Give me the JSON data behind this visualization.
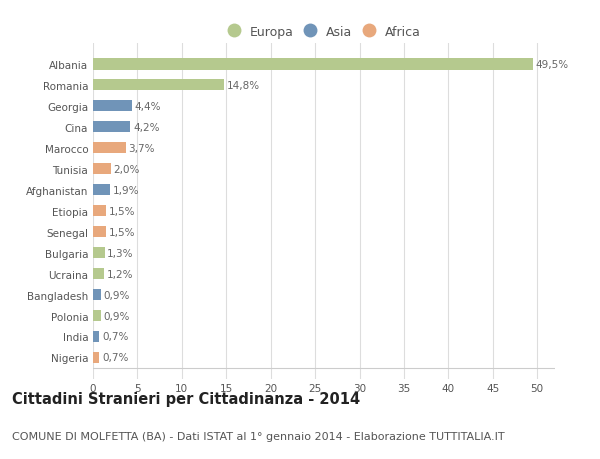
{
  "categories": [
    "Nigeria",
    "India",
    "Polonia",
    "Bangladesh",
    "Ucraina",
    "Bulgaria",
    "Senegal",
    "Etiopia",
    "Afghanistan",
    "Tunisia",
    "Marocco",
    "Cina",
    "Georgia",
    "Romania",
    "Albania"
  ],
  "values": [
    0.7,
    0.7,
    0.9,
    0.9,
    1.2,
    1.3,
    1.5,
    1.5,
    1.9,
    2.0,
    3.7,
    4.2,
    4.4,
    14.8,
    49.5
  ],
  "labels": [
    "0,7%",
    "0,7%",
    "0,9%",
    "0,9%",
    "1,2%",
    "1,3%",
    "1,5%",
    "1,5%",
    "1,9%",
    "2,0%",
    "3,7%",
    "4,2%",
    "4,4%",
    "14,8%",
    "49,5%"
  ],
  "colors": [
    "#e8a87c",
    "#7094b8",
    "#b5c98e",
    "#7094b8",
    "#b5c98e",
    "#b5c98e",
    "#e8a87c",
    "#e8a87c",
    "#7094b8",
    "#e8a87c",
    "#e8a87c",
    "#7094b8",
    "#7094b8",
    "#b5c98e",
    "#b5c98e"
  ],
  "legend_colors": {
    "Europa": "#b5c98e",
    "Asia": "#7094b8",
    "Africa": "#e8a87c"
  },
  "title": "Cittadini Stranieri per Cittadinanza - 2014",
  "subtitle": "COMUNE DI MOLFETTA (BA) - Dati ISTAT al 1° gennaio 2014 - Elaborazione TUTTITALIA.IT",
  "xlim": [
    0,
    52
  ],
  "xticks": [
    0,
    5,
    10,
    15,
    20,
    25,
    30,
    35,
    40,
    45,
    50
  ],
  "background_color": "#ffffff",
  "bar_height": 0.55,
  "title_fontsize": 10.5,
  "subtitle_fontsize": 8,
  "label_fontsize": 7.5,
  "tick_fontsize": 7.5,
  "legend_fontsize": 9,
  "grid_color": "#dddddd"
}
